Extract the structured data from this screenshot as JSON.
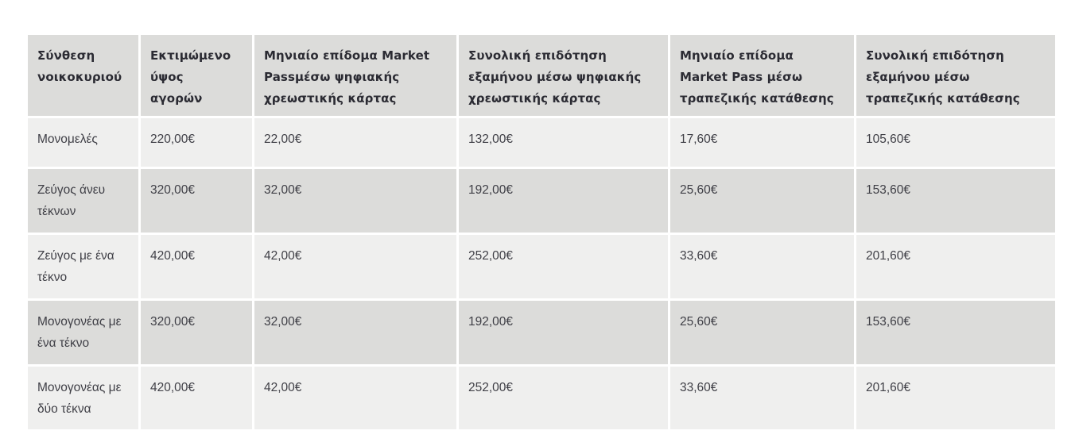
{
  "colors": {
    "page_bg": "#ffffff",
    "header_bg": "#dcdcda",
    "row_alt_bg": "#dcdcda",
    "row_bg": "#efefee",
    "header_text": "#2b2b33",
    "body_text": "#3f3f46"
  },
  "chart_data": {
    "type": "table",
    "title": "",
    "columns": [
      "Σύνθεση νοικοκυριού",
      "Εκτιμώμενο ύψος αγορών",
      "Μηνιαίο επίδομα Market Passμέσω ψηφιακής χρεωστικής κάρτας",
      "Συνολική επιδότηση εξαμήνου μέσω ψηφιακής χρεωστικής κάρτας",
      "Μηνιαίο επίδομα Market Pass μέσω τραπεζικής κατάθεσης",
      "Συνολική επιδότηση εξαμήνου μέσω τραπεζικής κατάθεσης"
    ],
    "rows": [
      [
        "Μονομελές",
        "220,00€",
        "22,00€",
        "132,00€",
        "17,60€",
        "105,60€"
      ],
      [
        "Ζεύγος άνευ τέκνων",
        "320,00€",
        "32,00€",
        "192,00€",
        "25,60€",
        "153,60€"
      ],
      [
        "Ζεύγος με ένα τέκνο",
        "420,00€",
        "42,00€",
        "252,00€",
        "33,60€",
        "201,60€"
      ],
      [
        "Μονογονέας με ένα τέκνο",
        "320,00€",
        "32,00€",
        "192,00€",
        "25,60€",
        "153,60€"
      ],
      [
        "Μονογονέας με δύο τέκνα",
        "420,00€",
        "42,00€",
        "252,00€",
        "33,60€",
        "201,60€"
      ]
    ],
    "layout": {
      "grid": "off",
      "striped": true,
      "header_position": "top"
    }
  }
}
